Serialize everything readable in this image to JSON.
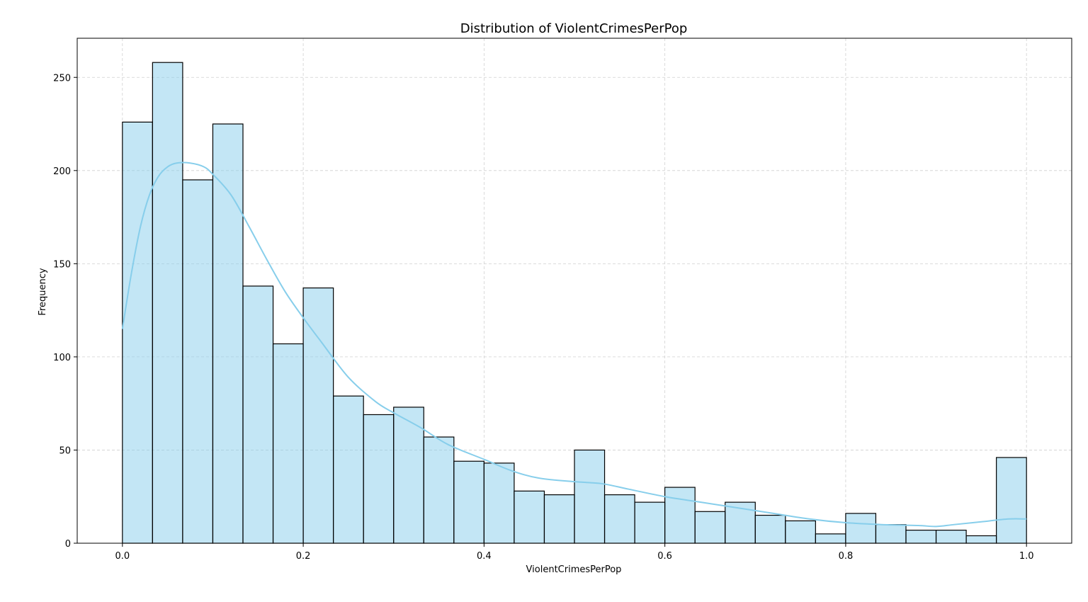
{
  "chart_data": {
    "type": "bar",
    "title": "Distribution of ViolentCrimesPerPop",
    "xlabel": "ViolentCrimesPerPop",
    "ylabel": "Frequency",
    "xlim": [
      -0.05,
      1.05
    ],
    "ylim": [
      0,
      271
    ],
    "xticks": [
      0.0,
      0.2,
      0.4,
      0.6,
      0.8,
      1.0
    ],
    "xtick_labels": [
      "0.0",
      "0.2",
      "0.4",
      "0.6",
      "0.8",
      "1.0"
    ],
    "yticks": [
      0,
      50,
      100,
      150,
      200,
      250
    ],
    "ytick_labels": [
      "0",
      "50",
      "100",
      "150",
      "200",
      "250"
    ],
    "grid": true,
    "bins": {
      "start": 0.0,
      "end": 1.0,
      "count": 30,
      "values": [
        226,
        258,
        195,
        225,
        138,
        107,
        137,
        79,
        69,
        73,
        57,
        44,
        43,
        28,
        26,
        50,
        26,
        22,
        30,
        17,
        22,
        15,
        12,
        5,
        16,
        10,
        7,
        7,
        4,
        46
      ]
    },
    "kde": {
      "x": [
        0.0,
        0.01,
        0.02,
        0.03,
        0.04,
        0.05,
        0.06,
        0.075,
        0.09,
        0.1,
        0.12,
        0.14,
        0.16,
        0.18,
        0.2,
        0.22,
        0.25,
        0.28,
        0.3,
        0.33,
        0.36,
        0.4,
        0.43,
        0.46,
        0.5,
        0.53,
        0.56,
        0.6,
        0.64,
        0.68,
        0.72,
        0.76,
        0.8,
        0.84,
        0.88,
        0.9,
        0.92,
        0.95,
        0.98,
        1.0
      ],
      "y": [
        115,
        145,
        170,
        187,
        197,
        202,
        204,
        204,
        202,
        198,
        187,
        170,
        152,
        135,
        121,
        108,
        89,
        76,
        70,
        62,
        53,
        45,
        39,
        35,
        33,
        32,
        29,
        25,
        22,
        19,
        16,
        13,
        11,
        10,
        9.5,
        9,
        10,
        11.5,
        13,
        13
      ]
    }
  }
}
